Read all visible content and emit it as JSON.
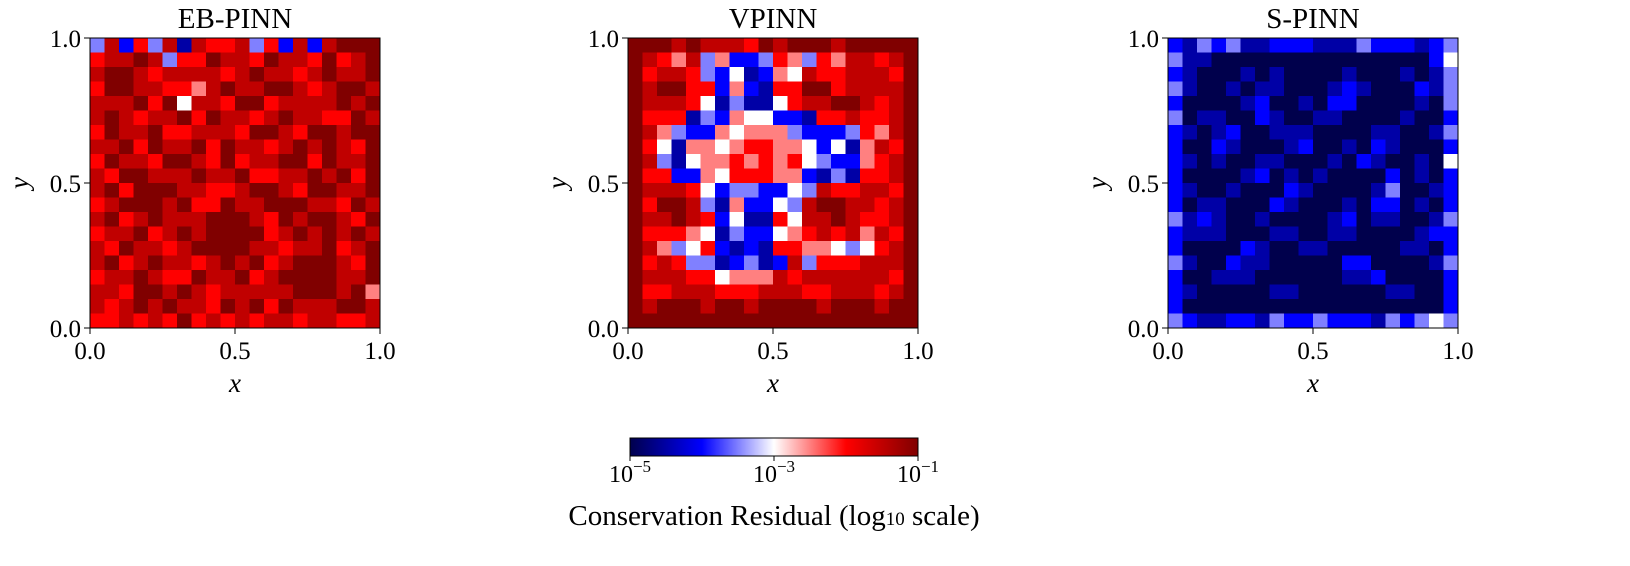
{
  "chart_data": [
    {
      "type": "heatmap",
      "title": "EB-PINN",
      "xlabel": "x",
      "ylabel": "y",
      "xlim": [
        0,
        1
      ],
      "ylim": [
        0,
        1
      ],
      "xticks": [
        "0.0",
        "0.5",
        "1.0"
      ],
      "yticks": [
        "0.0",
        "0.5",
        "1.0"
      ],
      "value_encoding": "digit d -> log10 residual = -5 + 0.5*d; rows listed top (y=1) to bottom (y=0)",
      "grid": [
        "37263717667362727888",
        "67787366877687768678",
        "78876777767877678778",
        "68877665787788767887",
        "77786847768867777878",
        "78767786877678776687",
        "68778667776887688788",
        "77868778687767878768",
        "68776887686778868778",
        "76887778778667787868",
        "78688877667887688778",
        "67888786687788877687",
        "78678777888768788768",
        "67786787888867878787",
        "76877678888776778678",
        "78678776787867888768",
        "67787668778678888778",
        "77688787677777888785",
        "76787877687868777887",
        "66767686767677677667"
      ]
    },
    {
      "type": "heatmap",
      "title": "VPINN",
      "xlabel": "x",
      "ylabel": "y",
      "xlim": [
        0,
        1
      ],
      "ylim": [
        0,
        1
      ],
      "xticks": [
        "0.0",
        "0.5",
        "1.0"
      ],
      "yticks": [
        "0.0",
        "0.5",
        "1.0"
      ],
      "value_encoding": "digit d -> log10 residual = -5 + 0.5*d; rows listed top (y=1) to bottom (y=0)",
      "grid": [
        "88878777687888788888",
        "87657352236536577678",
        "86776324125476677768",
        "87886625216688677778",
        "87776413114677887678",
        "86661325442216676678",
        "87532254555322236578",
        "86415545665542415768",
        "87314556565643225678",
        "86622546665521316678",
        "87776423322437667768",
        "86887315224378877678",
        "87787624116477876678",
        "86665413224567675768",
        "87534621216655434678",
        "86763312312736667778",
        "87776645557677777768",
        "86677766677766777678",
        "87888788788887888788",
        "88888888888888888888"
      ]
    },
    {
      "type": "heatmap",
      "title": "S-PINN",
      "xlabel": "x",
      "ylabel": "y",
      "xlim": [
        0,
        1
      ],
      "ylim": [
        0,
        1
      ],
      "xticks": [
        "0.0",
        "0.5",
        "1.0"
      ],
      "yticks": [
        "0.0",
        "0.5",
        "1.0"
      ],
      "value_encoding": "digit d -> log10 residual = -5 + 0.5*d; rows listed top (y=1) to bottom (y=0)",
      "grid": [
        "21323112221113222123",
        "31100000000000000024",
        "21000101000010001013",
        "31001011000121000213",
        "20000120010220000103",
        "30110021001100001002",
        "21012001110000110013",
        "20021000120010210002",
        "21010011000102100104",
        "20000120101000020102",
        "21001000210000130012",
        "20110002100010220102",
        "31210010000120110013",
        "21110001100110000122",
        "20000210011000001102",
        "31002110000022000013",
        "20011100000011200002",
        "21000001100000011002",
        "20000000000000000002",
        "32112213223222132343"
      ]
    }
  ],
  "colorbar": {
    "colormap": "seismic",
    "range_log10": [
      -5,
      -1
    ],
    "ticks": [
      {
        "base": "10",
        "exp": "−5"
      },
      {
        "base": "10",
        "exp": "−3"
      },
      {
        "base": "10",
        "exp": "−1"
      }
    ],
    "label_main": "Conservation Residual (log",
    "label_sub": "10",
    "label_end": " scale)"
  }
}
